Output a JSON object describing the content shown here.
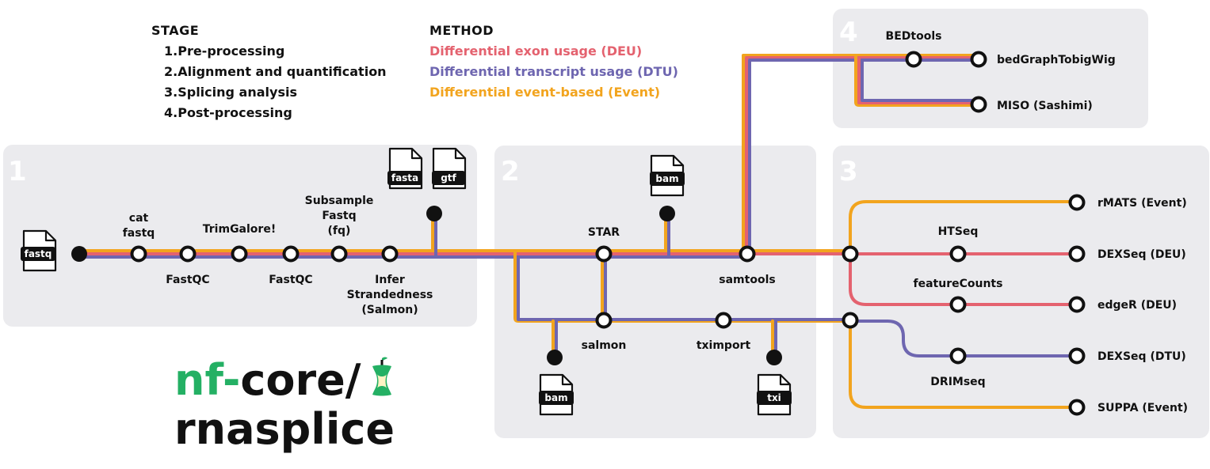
{
  "colors": {
    "deu": "#e4626f",
    "dtu": "#6e66b0",
    "event": "#f2a41e",
    "panel": "#ebebee",
    "stage_number": "#ffffff",
    "logo_green": "#24b064"
  },
  "legend": {
    "stage_title": "STAGE",
    "stages": [
      "1.Pre-processing",
      "2.Alignment and quantification",
      "3.Splicing analysis",
      "4.Post-processing"
    ],
    "method_title": "METHOD",
    "methods": [
      {
        "label": "Differential exon usage (DEU)",
        "color": "#e4626f"
      },
      {
        "label": "Differential transcript usage (DTU)",
        "color": "#6e66b0"
      },
      {
        "label": "Differential event-based (Event)",
        "color": "#f2a41e"
      }
    ]
  },
  "panels": {
    "p1": "1",
    "p2": "2",
    "p3": "3",
    "p4": "4"
  },
  "files": {
    "fastq": "fastq",
    "fasta": "fasta",
    "gtf": "gtf",
    "bam_star": "bam",
    "bam_salmon": "bam",
    "txi": "txi"
  },
  "nodes": {
    "cat_fastq": "cat\nfastq",
    "fastqc_1": "FastQC",
    "trimgalore": "TrimGalore!",
    "fastqc_2": "FastQC",
    "subsample": "Subsample\nFastq\n(fq)",
    "infer": "Infer\nStrandedness\n(Salmon)",
    "star": "STAR",
    "samtools": "samtools",
    "salmon": "salmon",
    "tximport": "tximport",
    "bedtools": "BEDtools",
    "bedgraphtobigwig": "bedGraphTobigWig",
    "miso": "MISO (Sashimi)",
    "htseq": "HTSeq",
    "featurecounts": "featureCounts",
    "drimseq": "DRIMseq",
    "rmats": "rMATS (Event)",
    "dexseq_deu": "DEXSeq (DEU)",
    "edger": "edgeR (DEU)",
    "dexseq_dtu": "DEXSeq (DTU)",
    "suppa": "SUPPA (Event)"
  },
  "logo": {
    "prefix": "nf-",
    "core": "core/",
    "name": "rnasplice"
  }
}
